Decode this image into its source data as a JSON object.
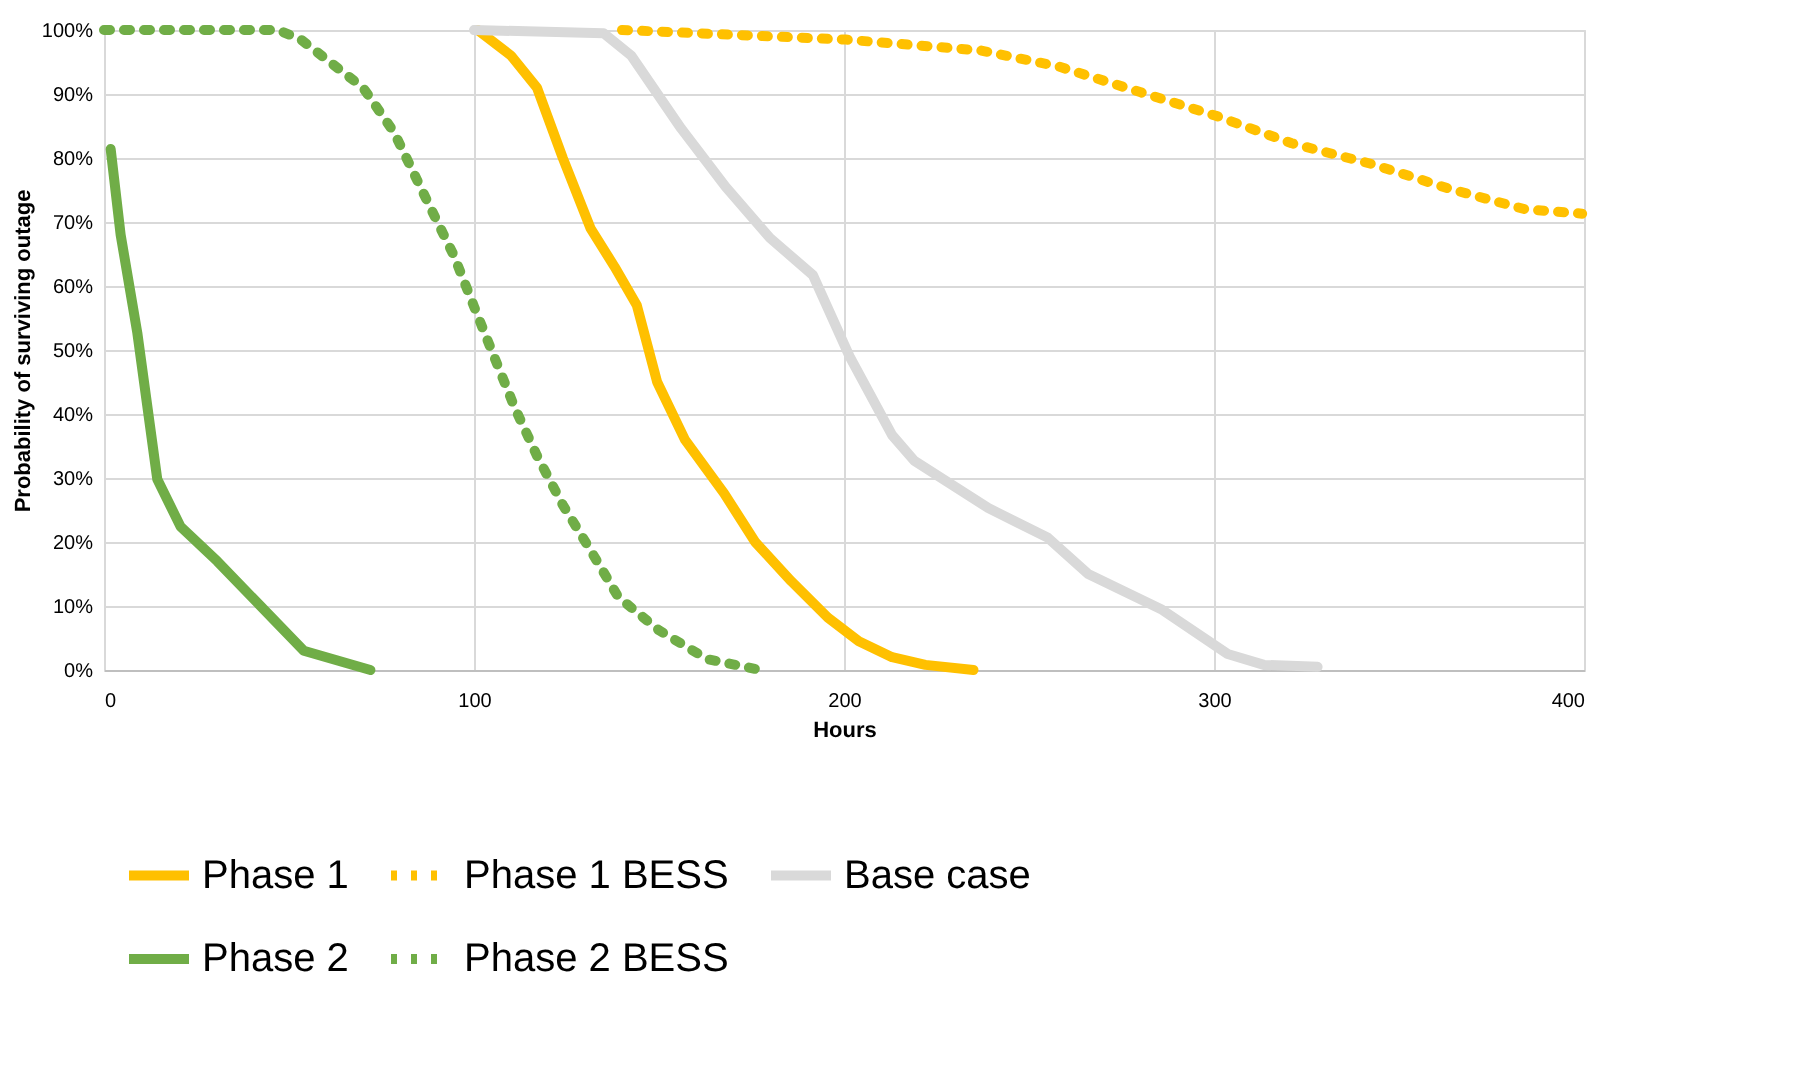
{
  "chart_data": {
    "type": "line",
    "xlabel": "Hours",
    "ylabel": "Probability of surviving outage",
    "xlim": [
      0,
      400
    ],
    "xticks": [
      0,
      100,
      200,
      300,
      400
    ],
    "ylim": [
      0,
      100
    ],
    "yticks": [
      {
        "value": 0,
        "label": "0%"
      },
      {
        "value": 10,
        "label": "10%"
      },
      {
        "value": 20,
        "label": "20%"
      },
      {
        "value": 30,
        "label": "30%"
      },
      {
        "value": 40,
        "label": "40%"
      },
      {
        "value": 50,
        "label": "50%"
      },
      {
        "value": 60,
        "label": "60%"
      },
      {
        "value": 70,
        "label": "70%"
      },
      {
        "value": 80,
        "label": "80%"
      },
      {
        "value": 90,
        "label": "90%"
      },
      {
        "value": 100,
        "label": "100%"
      }
    ],
    "grid": true,
    "legend": "bottom",
    "marker": "none",
    "series": [
      {
        "name": "Phase 1",
        "color": "#ffc000",
        "line_style": "solid",
        "x": [
          101,
          110,
          117,
          124,
          131.5,
          138,
          144,
          149.5,
          157,
          167.6,
          176,
          185.7,
          195.6,
          204,
          213,
          222,
          235
        ],
        "values": [
          100,
          96,
          91,
          80,
          69,
          63,
          57,
          45,
          36,
          27.6,
          20,
          13.9,
          8.2,
          4.5,
          2,
          0.8,
          0
        ]
      },
      {
        "name": "Phase 1 BESS",
        "color": "#ffc000",
        "line_style": "dotted",
        "x": [
          140,
          156,
          200.5,
          237,
          258,
          280,
          300.5,
          321,
          343,
          363.6,
          384,
          399.5
        ],
        "values": [
          100,
          99.6,
          98.5,
          96.8,
          94.3,
          90.3,
          86.6,
          82.3,
          79,
          75.2,
          72,
          71.3
        ]
      },
      {
        "name": "Base case",
        "color": "#d9d9d9",
        "line_style": "solid",
        "x": [
          100,
          135,
          142.5,
          156,
          168,
          180,
          191.6,
          201.5,
          213,
          219,
          239,
          255,
          266,
          286,
          303.7,
          313.5,
          328
        ],
        "values": [
          100,
          99.5,
          96,
          84.6,
          75.5,
          67.5,
          61.7,
          49,
          36.7,
          32.7,
          25.3,
          20.7,
          15,
          9.4,
          2.5,
          0.8,
          0.5
        ]
      },
      {
        "name": "Phase 2",
        "color": "#70ad47",
        "line_style": "solid",
        "x": [
          1.8,
          4.5,
          9,
          14.4,
          20.7,
          30.6,
          54,
          72
        ],
        "values": [
          81.4,
          68,
          52.7,
          29.8,
          22.4,
          17,
          3,
          0
        ]
      },
      {
        "name": "Phase 2 BESS",
        "color": "#70ad47",
        "line_style": "dotted",
        "x": [
          0,
          47,
          53,
          70,
          78.4,
          88,
          94.6,
          100,
          105.4,
          111,
          117,
          124,
          131.5,
          139,
          150,
          163,
          177.5
        ],
        "values": [
          100,
          100,
          98.6,
          91,
          84,
          72.5,
          64.7,
          56.8,
          49,
          41,
          33.5,
          25.8,
          18.7,
          11.4,
          6.2,
          1.7,
          0
        ]
      }
    ]
  }
}
